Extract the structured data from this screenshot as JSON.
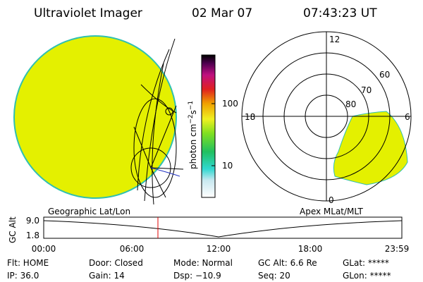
{
  "header": {
    "title": "Ultraviolet Imager",
    "date": "02 Mar 07",
    "time": "07:43:23 UT"
  },
  "colorbar": {
    "label": "photon cm",
    "exp1": "−2",
    "unit2": "s",
    "exp2": "−1",
    "ticks": [
      "100",
      "10"
    ]
  },
  "polar": {
    "mlt_labels": [
      "12",
      "18",
      "6",
      "0"
    ],
    "lat_labels": [
      "60",
      "70",
      "80"
    ]
  },
  "panels": {
    "left": "Geographic Lat/Lon",
    "right": "Apex MLat/MLT"
  },
  "altitude_plot": {
    "ylabel": "GC Alt",
    "yticks": [
      "9.0",
      "1.8"
    ],
    "xticks": [
      "00:00",
      "06:00",
      "12:00",
      "18:00",
      "23:59"
    ]
  },
  "status": {
    "rows": [
      [
        "Flt: HOME",
        "Door: Closed",
        "Mode: Normal",
        "GC Alt: 6.6 Re",
        "GLat: *****"
      ],
      [
        "IP: 36.0",
        "Gain: 14",
        "Dsp: −10.9",
        "Seq: 20",
        "GLon: *****"
      ]
    ]
  }
}
